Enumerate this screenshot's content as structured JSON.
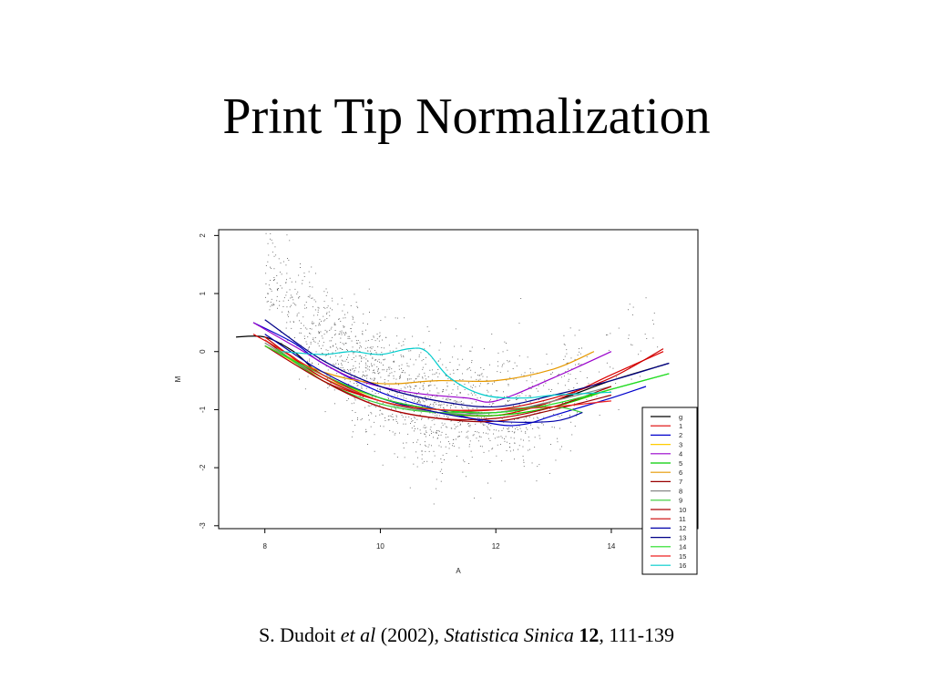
{
  "slide": {
    "title": "Print Tip Normalization"
  },
  "citation": {
    "author": "S. Dudoit ",
    "etal": "et al",
    "year": " (2002), ",
    "journal": "Statistica Sinica",
    "volume": "12",
    "pages": ", 111-139"
  },
  "chart_data": {
    "type": "scatter",
    "title": "",
    "xlabel": "A",
    "ylabel": "M",
    "xlim": [
      7.2,
      15.5
    ],
    "ylim": [
      -3.05,
      2.1
    ],
    "xticks": [
      "8",
      "10",
      "12",
      "14"
    ],
    "yticks": [
      "-3",
      "-2",
      "-1",
      "0",
      "1",
      "2"
    ],
    "points_color": "#555555",
    "legend_position": "bottom-right",
    "series": [
      {
        "name": "g",
        "color": "#000000",
        "x": [
          7.5,
          8.0,
          8.5,
          9.0,
          10.0,
          11.0,
          12.0,
          13.0,
          14.0,
          15.0
        ],
        "y": [
          0.25,
          0.25,
          0.0,
          -0.4,
          -0.8,
          -1.0,
          -1.05,
          -0.85,
          -0.5,
          -0.2
        ]
      },
      {
        "name": "1",
        "color": "#dd0000",
        "x": [
          7.8,
          8.5,
          9.0,
          10.0,
          11.0,
          12.0,
          13.0,
          14.0,
          14.9
        ],
        "y": [
          0.3,
          -0.1,
          -0.5,
          -0.85,
          -1.05,
          -1.1,
          -0.85,
          -0.4,
          0.0
        ]
      },
      {
        "name": "2",
        "color": "#0000cc",
        "x": [
          7.8,
          8.5,
          9.0,
          10.0,
          11.0,
          12.0,
          12.5,
          13.0,
          14.0,
          14.6
        ],
        "y": [
          0.5,
          0.15,
          -0.2,
          -0.7,
          -1.0,
          -1.25,
          -1.25,
          -1.1,
          -0.8,
          -0.6
        ]
      },
      {
        "name": "3",
        "color": "#ffcc00",
        "x": [
          8.2,
          9.0,
          10.0,
          11.0,
          12.0,
          13.0,
          14.0
        ],
        "y": [
          0.0,
          -0.45,
          -0.8,
          -1.05,
          -1.1,
          -0.95,
          -0.65
        ]
      },
      {
        "name": "4",
        "color": "#9900cc",
        "x": [
          7.8,
          8.5,
          9.5,
          10.5,
          11.5,
          12.0,
          13.0,
          14.0
        ],
        "y": [
          0.5,
          0.1,
          -0.45,
          -0.7,
          -0.8,
          -0.85,
          -0.45,
          0.0
        ]
      },
      {
        "name": "5",
        "color": "#00cc00",
        "x": [
          8.0,
          9.0,
          10.0,
          11.0,
          12.0,
          13.0,
          14.0,
          15.0
        ],
        "y": [
          0.2,
          -0.4,
          -0.85,
          -1.05,
          -1.1,
          -0.95,
          -0.65,
          -0.38
        ]
      },
      {
        "name": "6",
        "color": "#e69900",
        "x": [
          8.0,
          9.0,
          10.0,
          11.0,
          12.0,
          13.0,
          13.7
        ],
        "y": [
          0.1,
          -0.35,
          -0.55,
          -0.5,
          -0.5,
          -0.3,
          0.0
        ]
      },
      {
        "name": "7",
        "color": "#990000",
        "x": [
          8.0,
          9.0,
          10.0,
          11.0,
          12.0,
          13.0,
          14.0
        ],
        "y": [
          0.2,
          -0.5,
          -0.95,
          -1.15,
          -1.2,
          -1.0,
          -0.75
        ]
      },
      {
        "name": "8",
        "color": "#888888",
        "x": [
          8.0,
          9.0,
          10.0,
          11.0,
          12.0,
          13.0,
          14.0
        ],
        "y": [
          0.15,
          -0.45,
          -0.85,
          -1.05,
          -1.05,
          -0.85,
          -0.6
        ]
      },
      {
        "name": "9",
        "color": "#33cc33",
        "x": [
          8.2,
          9.0,
          10.0,
          11.0,
          12.0,
          13.0,
          13.5
        ],
        "y": [
          0.05,
          -0.5,
          -0.9,
          -1.05,
          -1.0,
          -0.95,
          -1.05
        ]
      },
      {
        "name": "10",
        "color": "#aa0000",
        "x": [
          8.0,
          9.0,
          10.0,
          11.0,
          12.0,
          13.0,
          14.0
        ],
        "y": [
          0.1,
          -0.5,
          -0.95,
          -1.15,
          -1.15,
          -0.95,
          -0.6
        ]
      },
      {
        "name": "11",
        "color": "#cc0000",
        "x": [
          8.0,
          9.0,
          10.0,
          11.0,
          12.0,
          13.0,
          14.0,
          14.9
        ],
        "y": [
          0.25,
          -0.45,
          -0.85,
          -1.0,
          -1.0,
          -0.8,
          -0.45,
          0.05
        ]
      },
      {
        "name": "12",
        "color": "#0000aa",
        "x": [
          8.0,
          9.0,
          10.0,
          11.0,
          12.0,
          13.0,
          13.5
        ],
        "y": [
          0.3,
          -0.35,
          -0.8,
          -1.05,
          -1.2,
          -1.2,
          -1.05
        ]
      },
      {
        "name": "13",
        "color": "#000088",
        "x": [
          8.0,
          9.0,
          10.0,
          11.0,
          12.0,
          13.0,
          14.0,
          15.0
        ],
        "y": [
          0.55,
          -0.15,
          -0.6,
          -0.85,
          -0.95,
          -0.75,
          -0.5,
          -0.2
        ]
      },
      {
        "name": "14",
        "color": "#22dd22",
        "x": [
          8.0,
          9.0,
          10.0,
          11.0,
          12.0,
          13.0,
          14.0,
          15.0
        ],
        "y": [
          0.1,
          -0.4,
          -0.8,
          -1.0,
          -1.05,
          -0.9,
          -0.65,
          -0.38
        ]
      },
      {
        "name": "15",
        "color": "#ee2222",
        "x": [
          8.0,
          9.0,
          10.0,
          11.0,
          12.0,
          13.0,
          14.0
        ],
        "y": [
          0.2,
          -0.4,
          -0.85,
          -1.0,
          -1.0,
          -0.95,
          -0.85
        ]
      },
      {
        "name": "16",
        "color": "#00cccc",
        "x": [
          8.3,
          9.0,
          9.5,
          10.0,
          10.5,
          10.8,
          11.2,
          11.8,
          12.5,
          13.0,
          14.0
        ],
        "y": [
          0.0,
          -0.05,
          0.0,
          -0.05,
          0.05,
          0.0,
          -0.45,
          -0.75,
          -0.8,
          -0.75,
          -0.7
        ]
      }
    ]
  }
}
